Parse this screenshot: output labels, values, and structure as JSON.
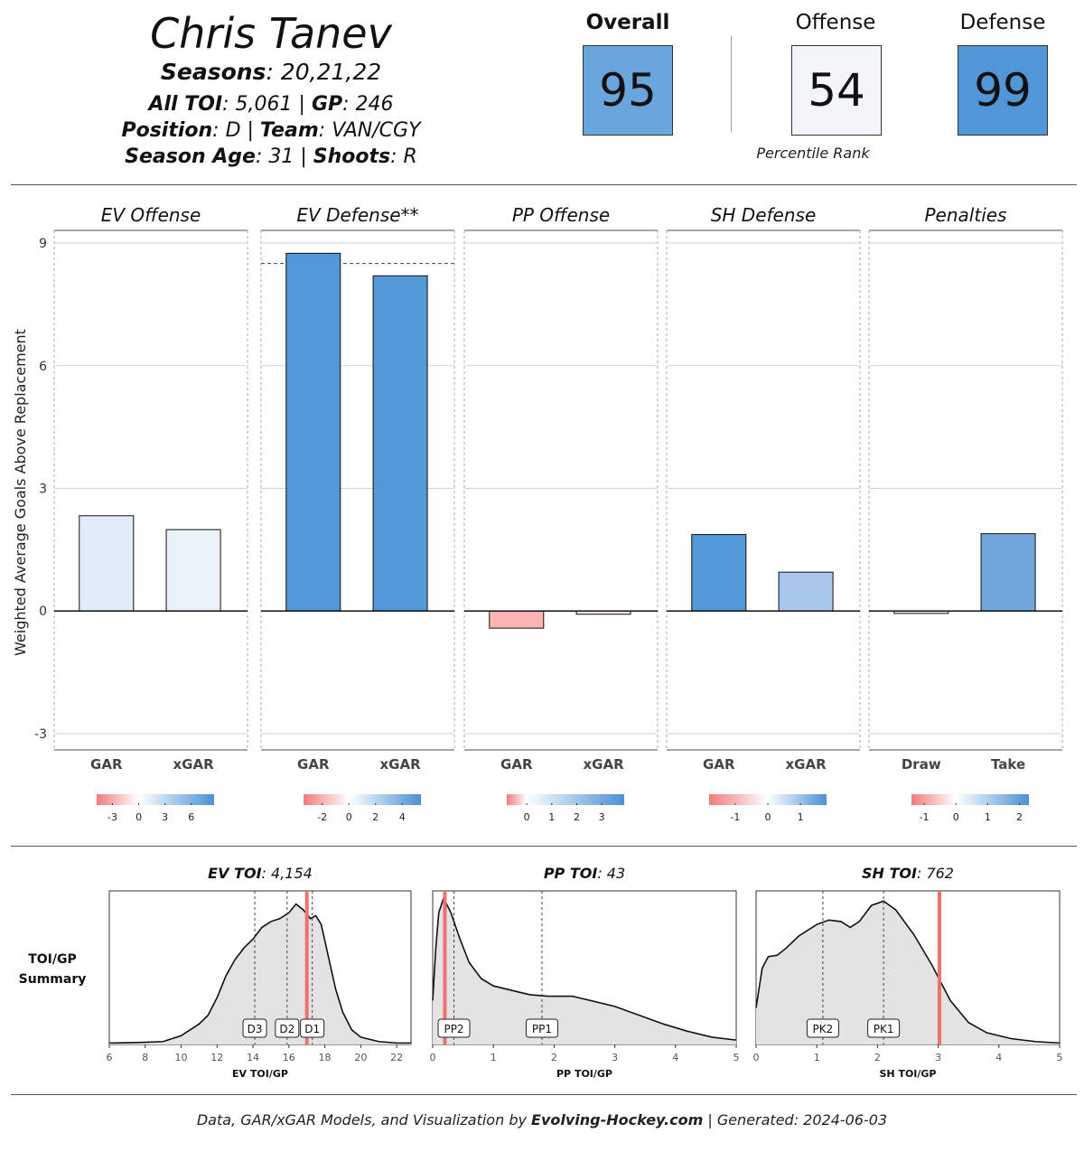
{
  "player": {
    "name": "Chris Tanev",
    "seasons_label": "Seasons",
    "seasons_value": ": 20,21,22",
    "toi_label": "All TOI",
    "toi_value": ": 5,061 | ",
    "gp_label": "GP",
    "gp_value": ": 246",
    "position_label": "Position",
    "position_value": ": D | ",
    "team_label": "Team",
    "team_value": ": VAN/CGY",
    "age_label": "Season Age",
    "age_value": ": 31 | ",
    "shoots_label": "Shoots",
    "shoots_value": ": R"
  },
  "ranks": {
    "overall_label": "Overall",
    "overall_value": "95",
    "offense_label": "Offense",
    "offense_value": "54",
    "defense_label": "Defense",
    "defense_value": "99",
    "caption": "Percentile Rank",
    "colors": {
      "overall": "#68a6dc",
      "offense": "#f2f6fb",
      "defense": "#5196d6"
    }
  },
  "footer": {
    "prefix": "Data, GAR/xGAR Models, and Visualization by ",
    "brand": "Evolving-Hockey.com",
    "suffix": " | Generated: 2024-06-03"
  },
  "chart_data": [
    {
      "type": "bar",
      "ylabel": "Weighted Average Goals Above Replacement",
      "ylim": [
        -3.4,
        9.2
      ],
      "yticks": [
        -3,
        0,
        3,
        6,
        9
      ],
      "panels": [
        {
          "title": "EV Offense",
          "categories": [
            "GAR",
            "xGAR"
          ],
          "values": [
            2.33,
            1.99
          ],
          "colors": [
            "#e2ebf8",
            "#ecf2fa"
          ],
          "scale": {
            "ticks": [
              "-3",
              "0",
              "3",
              "6"
            ],
            "domain": [
              -4.8,
              8.6
            ],
            "tick_values": [
              -3,
              0,
              3,
              6
            ]
          }
        },
        {
          "title": "EV Defense**",
          "categories": [
            "GAR",
            "xGAR"
          ],
          "values": [
            8.75,
            8.2
          ],
          "colors": [
            "#5199d8",
            "#5199d8"
          ],
          "reference_line": 8.5,
          "scale": {
            "ticks": [
              "-2",
              "0",
              "2",
              "4"
            ],
            "domain": [
              -3.4,
              5.4
            ],
            "tick_values": [
              -2,
              0,
              2,
              4
            ]
          }
        },
        {
          "title": "PP Offense",
          "categories": [
            "GAR",
            "xGAR"
          ],
          "values": [
            -0.42,
            -0.08
          ],
          "colors": [
            "#fbb3b3",
            "#fbe8e8"
          ],
          "scale": {
            "ticks": [
              "0",
              "1",
              "2",
              "3"
            ],
            "domain": [
              -0.8,
              3.9
            ],
            "tick_values": [
              0,
              1,
              2,
              3
            ]
          }
        },
        {
          "title": "SH Defense",
          "categories": [
            "GAR",
            "xGAR"
          ],
          "values": [
            1.87,
            0.95
          ],
          "colors": [
            "#5199d8",
            "#a9c7ec"
          ],
          "scale": {
            "ticks": [
              "-1",
              "0",
              "1"
            ],
            "domain": [
              -1.8,
              1.8
            ],
            "tick_values": [
              -1,
              0,
              1
            ]
          }
        },
        {
          "title": "Penalties",
          "categories": [
            "Draw",
            "Take"
          ],
          "values": [
            -0.06,
            1.89
          ],
          "colors": [
            "#f5eeee",
            "#6fa7dc"
          ],
          "scale": {
            "ticks": [
              "-1",
              "0",
              "1",
              "2"
            ],
            "domain": [
              -1.4,
              2.3
            ],
            "tick_values": [
              -1,
              0,
              1,
              2
            ]
          }
        }
      ]
    },
    {
      "type": "area",
      "summary_label": "TOI/GP\nSummary",
      "panels": [
        {
          "title_bold": "EV TOI",
          "title_rest": ": 4,154",
          "xlabel": "EV TOI/GP",
          "xlim": [
            6,
            22.8
          ],
          "xticks": [
            6,
            8,
            10,
            12,
            14,
            16,
            18,
            20,
            22
          ],
          "density": [
            [
              6,
              0.01
            ],
            [
              7,
              0.012
            ],
            [
              8,
              0.015
            ],
            [
              9,
              0.02
            ],
            [
              10,
              0.06
            ],
            [
              11,
              0.14
            ],
            [
              11.5,
              0.2
            ],
            [
              12,
              0.32
            ],
            [
              12.5,
              0.47
            ],
            [
              13,
              0.58
            ],
            [
              13.5,
              0.66
            ],
            [
              14,
              0.72
            ],
            [
              14.5,
              0.8
            ],
            [
              15,
              0.84
            ],
            [
              15.5,
              0.86
            ],
            [
              16,
              0.9
            ],
            [
              16.4,
              0.96
            ],
            [
              16.8,
              0.92
            ],
            [
              17.2,
              0.86
            ],
            [
              17.5,
              0.88
            ],
            [
              17.8,
              0.82
            ],
            [
              18.2,
              0.6
            ],
            [
              18.6,
              0.38
            ],
            [
              19,
              0.22
            ],
            [
              19.5,
              0.1
            ],
            [
              20,
              0.05
            ],
            [
              21,
              0.02
            ],
            [
              22,
              0.01
            ],
            [
              22.8,
              0.01
            ]
          ],
          "player_value": 17.0,
          "markers": [
            {
              "label": "D3",
              "x": 14.1
            },
            {
              "label": "D2",
              "x": 15.9
            },
            {
              "label": "D1",
              "x": 17.3
            }
          ]
        },
        {
          "title_bold": "PP TOI",
          "title_rest": ": 43",
          "xlabel": "PP TOI/GP",
          "xlim": [
            0,
            5
          ],
          "xticks": [
            0,
            1,
            2,
            3,
            4,
            5
          ],
          "density": [
            [
              0,
              0.3
            ],
            [
              0.05,
              0.65
            ],
            [
              0.1,
              0.9
            ],
            [
              0.18,
              1.0
            ],
            [
              0.3,
              0.9
            ],
            [
              0.45,
              0.72
            ],
            [
              0.6,
              0.56
            ],
            [
              0.8,
              0.45
            ],
            [
              1.0,
              0.4
            ],
            [
              1.3,
              0.37
            ],
            [
              1.6,
              0.34
            ],
            [
              1.9,
              0.33
            ],
            [
              2.3,
              0.33
            ],
            [
              2.6,
              0.3
            ],
            [
              3.0,
              0.26
            ],
            [
              3.4,
              0.2
            ],
            [
              3.8,
              0.14
            ],
            [
              4.2,
              0.09
            ],
            [
              4.6,
              0.05
            ],
            [
              5.0,
              0.03
            ]
          ],
          "player_value": 0.2,
          "markers": [
            {
              "label": "PP2",
              "x": 0.35
            },
            {
              "label": "PP1",
              "x": 1.8
            }
          ]
        },
        {
          "title_bold": "SH TOI",
          "title_rest": ": 762",
          "xlabel": "SH TOI/GP",
          "xlim": [
            0,
            5
          ],
          "xticks": [
            0,
            1,
            2,
            3,
            4,
            5
          ],
          "density": [
            [
              0,
              0.25
            ],
            [
              0.1,
              0.52
            ],
            [
              0.2,
              0.6
            ],
            [
              0.35,
              0.61
            ],
            [
              0.5,
              0.66
            ],
            [
              0.7,
              0.74
            ],
            [
              1.0,
              0.82
            ],
            [
              1.2,
              0.85
            ],
            [
              1.4,
              0.84
            ],
            [
              1.55,
              0.8
            ],
            [
              1.7,
              0.84
            ],
            [
              1.9,
              0.95
            ],
            [
              2.1,
              0.98
            ],
            [
              2.3,
              0.92
            ],
            [
              2.6,
              0.75
            ],
            [
              2.9,
              0.54
            ],
            [
              3.2,
              0.3
            ],
            [
              3.5,
              0.15
            ],
            [
              3.8,
              0.08
            ],
            [
              4.2,
              0.04
            ],
            [
              4.6,
              0.02
            ],
            [
              5.0,
              0.01
            ]
          ],
          "player_value": 3.02,
          "markers": [
            {
              "label": "PK2",
              "x": 1.1
            },
            {
              "label": "PK1",
              "x": 2.1
            }
          ]
        }
      ]
    }
  ]
}
